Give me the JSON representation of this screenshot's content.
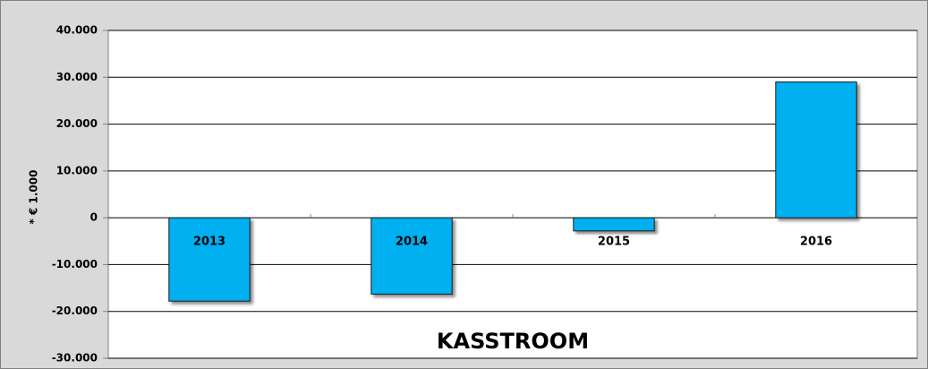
{
  "chart_data": {
    "type": "bar",
    "title": "KASSTROOM",
    "y_label": "* € 1.000",
    "categories": [
      "2013",
      "2014",
      "2015",
      "2016"
    ],
    "values": [
      -17800,
      -16300,
      -2800,
      29000
    ],
    "color": "#00b0f0",
    "ylim": [
      -30000,
      40000
    ],
    "yticks": [
      {
        "value": -30000,
        "label": "-30.000"
      },
      {
        "value": -20000,
        "label": "-20.000"
      },
      {
        "value": -10000,
        "label": "-10.000"
      },
      0,
      {
        "value": 10000,
        "label": "10.000"
      },
      {
        "value": 20000,
        "label": "20.000"
      },
      {
        "value": 30000,
        "label": "30.000"
      },
      {
        "value": 40000,
        "label": "40.000"
      }
    ],
    "grid": true
  }
}
